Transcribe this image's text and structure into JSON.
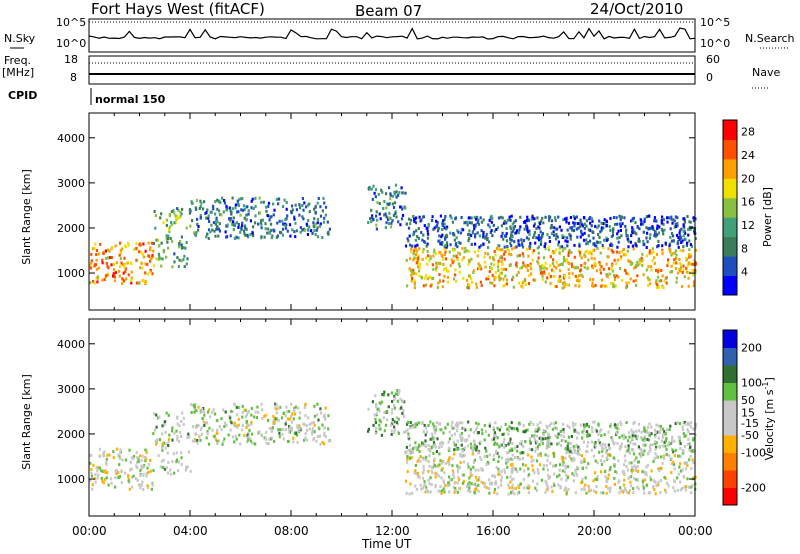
{
  "header": {
    "radar_title": "Fort Hays West (fitACF)",
    "beam": "Beam 07",
    "date": "24/Oct/2010"
  },
  "noise_panel": {
    "left_label": "N.Sky",
    "right_label": "N.Search",
    "tick_top": "10^5",
    "tick_bottom": "10^0"
  },
  "freq_panel": {
    "left_label_line1": "Freq.",
    "left_label_line2": "[MHz]",
    "right_label": "Nave",
    "left_tick_top": "18",
    "left_tick_bottom": "8",
    "right_tick_top": "60",
    "right_tick_bottom": "0"
  },
  "cpid": {
    "label": "CPID",
    "value": "normal 150"
  },
  "x_axis": {
    "label": "Time UT",
    "ticks": [
      "00:00",
      "04:00",
      "08:00",
      "12:00",
      "16:00",
      "20:00",
      "00:00"
    ]
  },
  "colors": {
    "power_scale": [
      "#0000ff",
      "#1f4fbf",
      "#3a7d5a",
      "#3fa07a",
      "#8ac040",
      "#f0e000",
      "#ffa000",
      "#ff5000",
      "#ff0000"
    ],
    "velocity_scale": [
      "#ff0000",
      "#ff4000",
      "#ff8000",
      "#ffb000",
      "#c8c8c8",
      "#c8c8c8",
      "#60c040",
      "#307030",
      "#3060b0",
      "#0000e0"
    ]
  },
  "chart_data": [
    {
      "type": "heatmap",
      "panel": "power",
      "ylabel": "Slant Range [km]",
      "yticks": [
        1000,
        2000,
        3000,
        4000
      ],
      "ylim": [
        180,
        4550
      ],
      "xlim_hours": [
        0,
        24
      ],
      "colorbar": {
        "label": "Power [dB]",
        "ticks": [
          4,
          8,
          12,
          16,
          20,
          24,
          28
        ],
        "range": [
          0,
          30
        ]
      },
      "scatter_regions": [
        {
          "t_start": 0.0,
          "t_end": 2.5,
          "range_min": 800,
          "range_max": 1700,
          "dominant_db": 22
        },
        {
          "t_start": 2.5,
          "t_end": 4.0,
          "range_min": 1100,
          "range_max": 2500,
          "dominant_db": 12
        },
        {
          "t_start": 4.0,
          "t_end": 9.5,
          "range_min": 1800,
          "range_max": 2700,
          "dominant_db": 8
        },
        {
          "t_start": 11.0,
          "t_end": 12.5,
          "range_min": 2000,
          "range_max": 3000,
          "dominant_db": 8
        },
        {
          "t_start": 12.5,
          "t_end": 24.0,
          "range_min": 700,
          "range_max": 1600,
          "dominant_db": 20
        },
        {
          "t_start": 12.5,
          "t_end": 24.0,
          "range_min": 1600,
          "range_max": 2300,
          "dominant_db": 6
        }
      ]
    },
    {
      "type": "heatmap",
      "panel": "velocity",
      "ylabel": "Slant Range [km]",
      "yticks": [
        1000,
        2000,
        3000,
        4000
      ],
      "ylim": [
        180,
        4550
      ],
      "xlim_hours": [
        0,
        24
      ],
      "colorbar": {
        "label": "Velocity [m s^-1]",
        "ticks": [
          -200,
          -100,
          -50,
          -15,
          15,
          50,
          100,
          200
        ],
        "range": [
          -250,
          250
        ]
      },
      "scatter_regions": [
        {
          "t_start": 0.0,
          "t_end": 2.5,
          "range_min": 800,
          "range_max": 1700,
          "dominant_velocity": 0
        },
        {
          "t_start": 2.5,
          "t_end": 4.0,
          "range_min": 1100,
          "range_max": 2500,
          "dominant_velocity": 30
        },
        {
          "t_start": 4.0,
          "t_end": 9.5,
          "range_min": 1800,
          "range_max": 2700,
          "dominant_velocity": 20
        },
        {
          "t_start": 11.0,
          "t_end": 12.5,
          "range_min": 2000,
          "range_max": 3000,
          "dominant_velocity": 60
        },
        {
          "t_start": 12.5,
          "t_end": 24.0,
          "range_min": 700,
          "range_max": 1600,
          "dominant_velocity": 0
        },
        {
          "t_start": 12.5,
          "t_end": 24.0,
          "range_min": 1600,
          "range_max": 2300,
          "dominant_velocity": 40
        }
      ]
    }
  ]
}
